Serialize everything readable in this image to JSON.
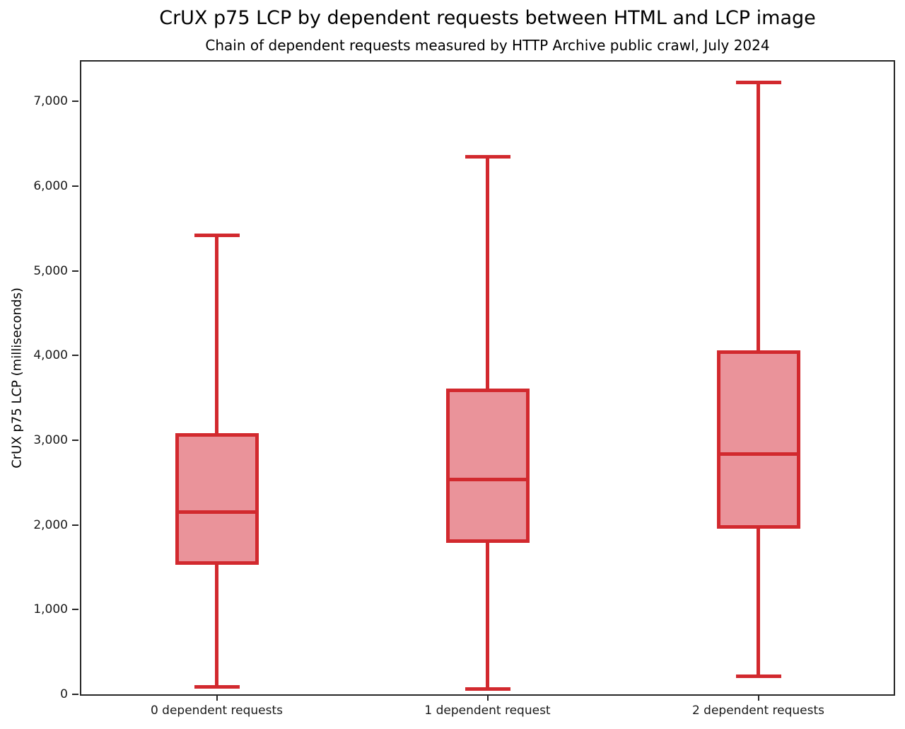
{
  "chart_data": {
    "type": "boxplot",
    "title": "CrUX p75 LCP by dependent requests between HTML and LCP image",
    "subtitle": "Chain of dependent requests measured by HTTP Archive public crawl, July 2024",
    "ylabel": "CrUX p75 LCP (milliseconds)",
    "xlabel": "",
    "categories": [
      "0 dependent requests",
      "1 dependent request",
      "2 dependent requests"
    ],
    "series": [
      {
        "name": "0 dependent requests",
        "min": 85,
        "q1": 1530,
        "median": 2150,
        "q3": 3080,
        "max": 5420
      },
      {
        "name": "1 dependent request",
        "min": 60,
        "q1": 1790,
        "median": 2540,
        "q3": 3610,
        "max": 6350
      },
      {
        "name": "2 dependent requests",
        "min": 215,
        "q1": 1955,
        "median": 2835,
        "q3": 4060,
        "max": 7225
      }
    ],
    "ylim": [
      0,
      7470
    ],
    "yticks": [
      0,
      1000,
      2000,
      3000,
      4000,
      5000,
      6000,
      7000
    ],
    "ytick_labels": [
      "0",
      "1,000",
      "2,000",
      "3,000",
      "4,000",
      "5,000",
      "6,000",
      "7,000"
    ],
    "grid": false,
    "legend": "none",
    "colors": {
      "box_edge": "#d2292e",
      "box_fill": "#ea939a",
      "spine": "#262626",
      "text": "#1a1a1a"
    }
  }
}
